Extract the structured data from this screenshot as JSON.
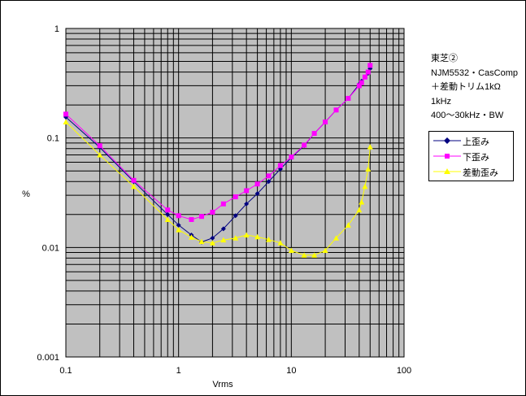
{
  "chart_data": {
    "type": "line",
    "xscale": "log",
    "yscale": "log",
    "xlim": [
      0.1,
      100
    ],
    "ylim": [
      0.001,
      1
    ],
    "xlabel": "Vrms",
    "ylabel": "%",
    "x_ticks": [
      "0.1",
      "1",
      "10",
      "100"
    ],
    "y_ticks": [
      "0.001",
      "0.01",
      "0.1",
      "1"
    ],
    "grid": true,
    "legend_position": "right",
    "annotation": [
      "東芝②",
      "NJM5532・CasComp",
      "＋差動トリム1kΩ",
      "1kHz",
      "400～30kHz・BW"
    ],
    "series": [
      {
        "name": "上歪み",
        "color": "#000080",
        "marker": "diamond",
        "x": [
          0.1,
          0.2,
          0.4,
          0.8,
          1.0,
          1.3,
          1.6,
          2.0,
          2.5,
          3.2,
          4.0,
          5.0,
          6.3,
          8.0,
          10,
          13,
          16,
          20,
          25,
          32,
          40,
          42,
          45,
          48,
          50
        ],
        "y": [
          0.155,
          0.082,
          0.04,
          0.02,
          0.016,
          0.013,
          0.0112,
          0.0122,
          0.0148,
          0.0195,
          0.025,
          0.031,
          0.04,
          0.052,
          0.066,
          0.085,
          0.11,
          0.14,
          0.18,
          0.23,
          0.31,
          0.33,
          0.36,
          0.39,
          0.43
        ]
      },
      {
        "name": "下歪み",
        "color": "#ff00ff",
        "marker": "square",
        "x": [
          0.1,
          0.2,
          0.4,
          0.8,
          1.0,
          1.3,
          1.6,
          2.0,
          2.5,
          3.2,
          4.0,
          5.0,
          6.3,
          8.0,
          10,
          13,
          16,
          20,
          25,
          32,
          40,
          42,
          45,
          48,
          50
        ],
        "y": [
          0.165,
          0.085,
          0.041,
          0.022,
          0.0195,
          0.018,
          0.0192,
          0.021,
          0.025,
          0.029,
          0.033,
          0.038,
          0.045,
          0.056,
          0.067,
          0.086,
          0.11,
          0.14,
          0.18,
          0.23,
          0.3,
          0.32,
          0.36,
          0.4,
          0.46
        ]
      },
      {
        "name": "差動歪み",
        "color": "#ffff00",
        "marker": "triangle",
        "x": [
          0.1,
          0.2,
          0.4,
          0.8,
          1.0,
          1.3,
          1.6,
          2.0,
          2.5,
          3.2,
          4.0,
          5.0,
          6.3,
          8.0,
          10,
          13,
          16,
          20,
          25,
          32,
          40,
          42,
          45,
          48,
          50
        ],
        "y": [
          0.14,
          0.07,
          0.036,
          0.018,
          0.0145,
          0.0124,
          0.0113,
          0.011,
          0.0117,
          0.0122,
          0.013,
          0.0125,
          0.0118,
          0.011,
          0.0094,
          0.0085,
          0.0085,
          0.0094,
          0.0122,
          0.016,
          0.022,
          0.026,
          0.036,
          0.052,
          0.083
        ]
      }
    ]
  }
}
